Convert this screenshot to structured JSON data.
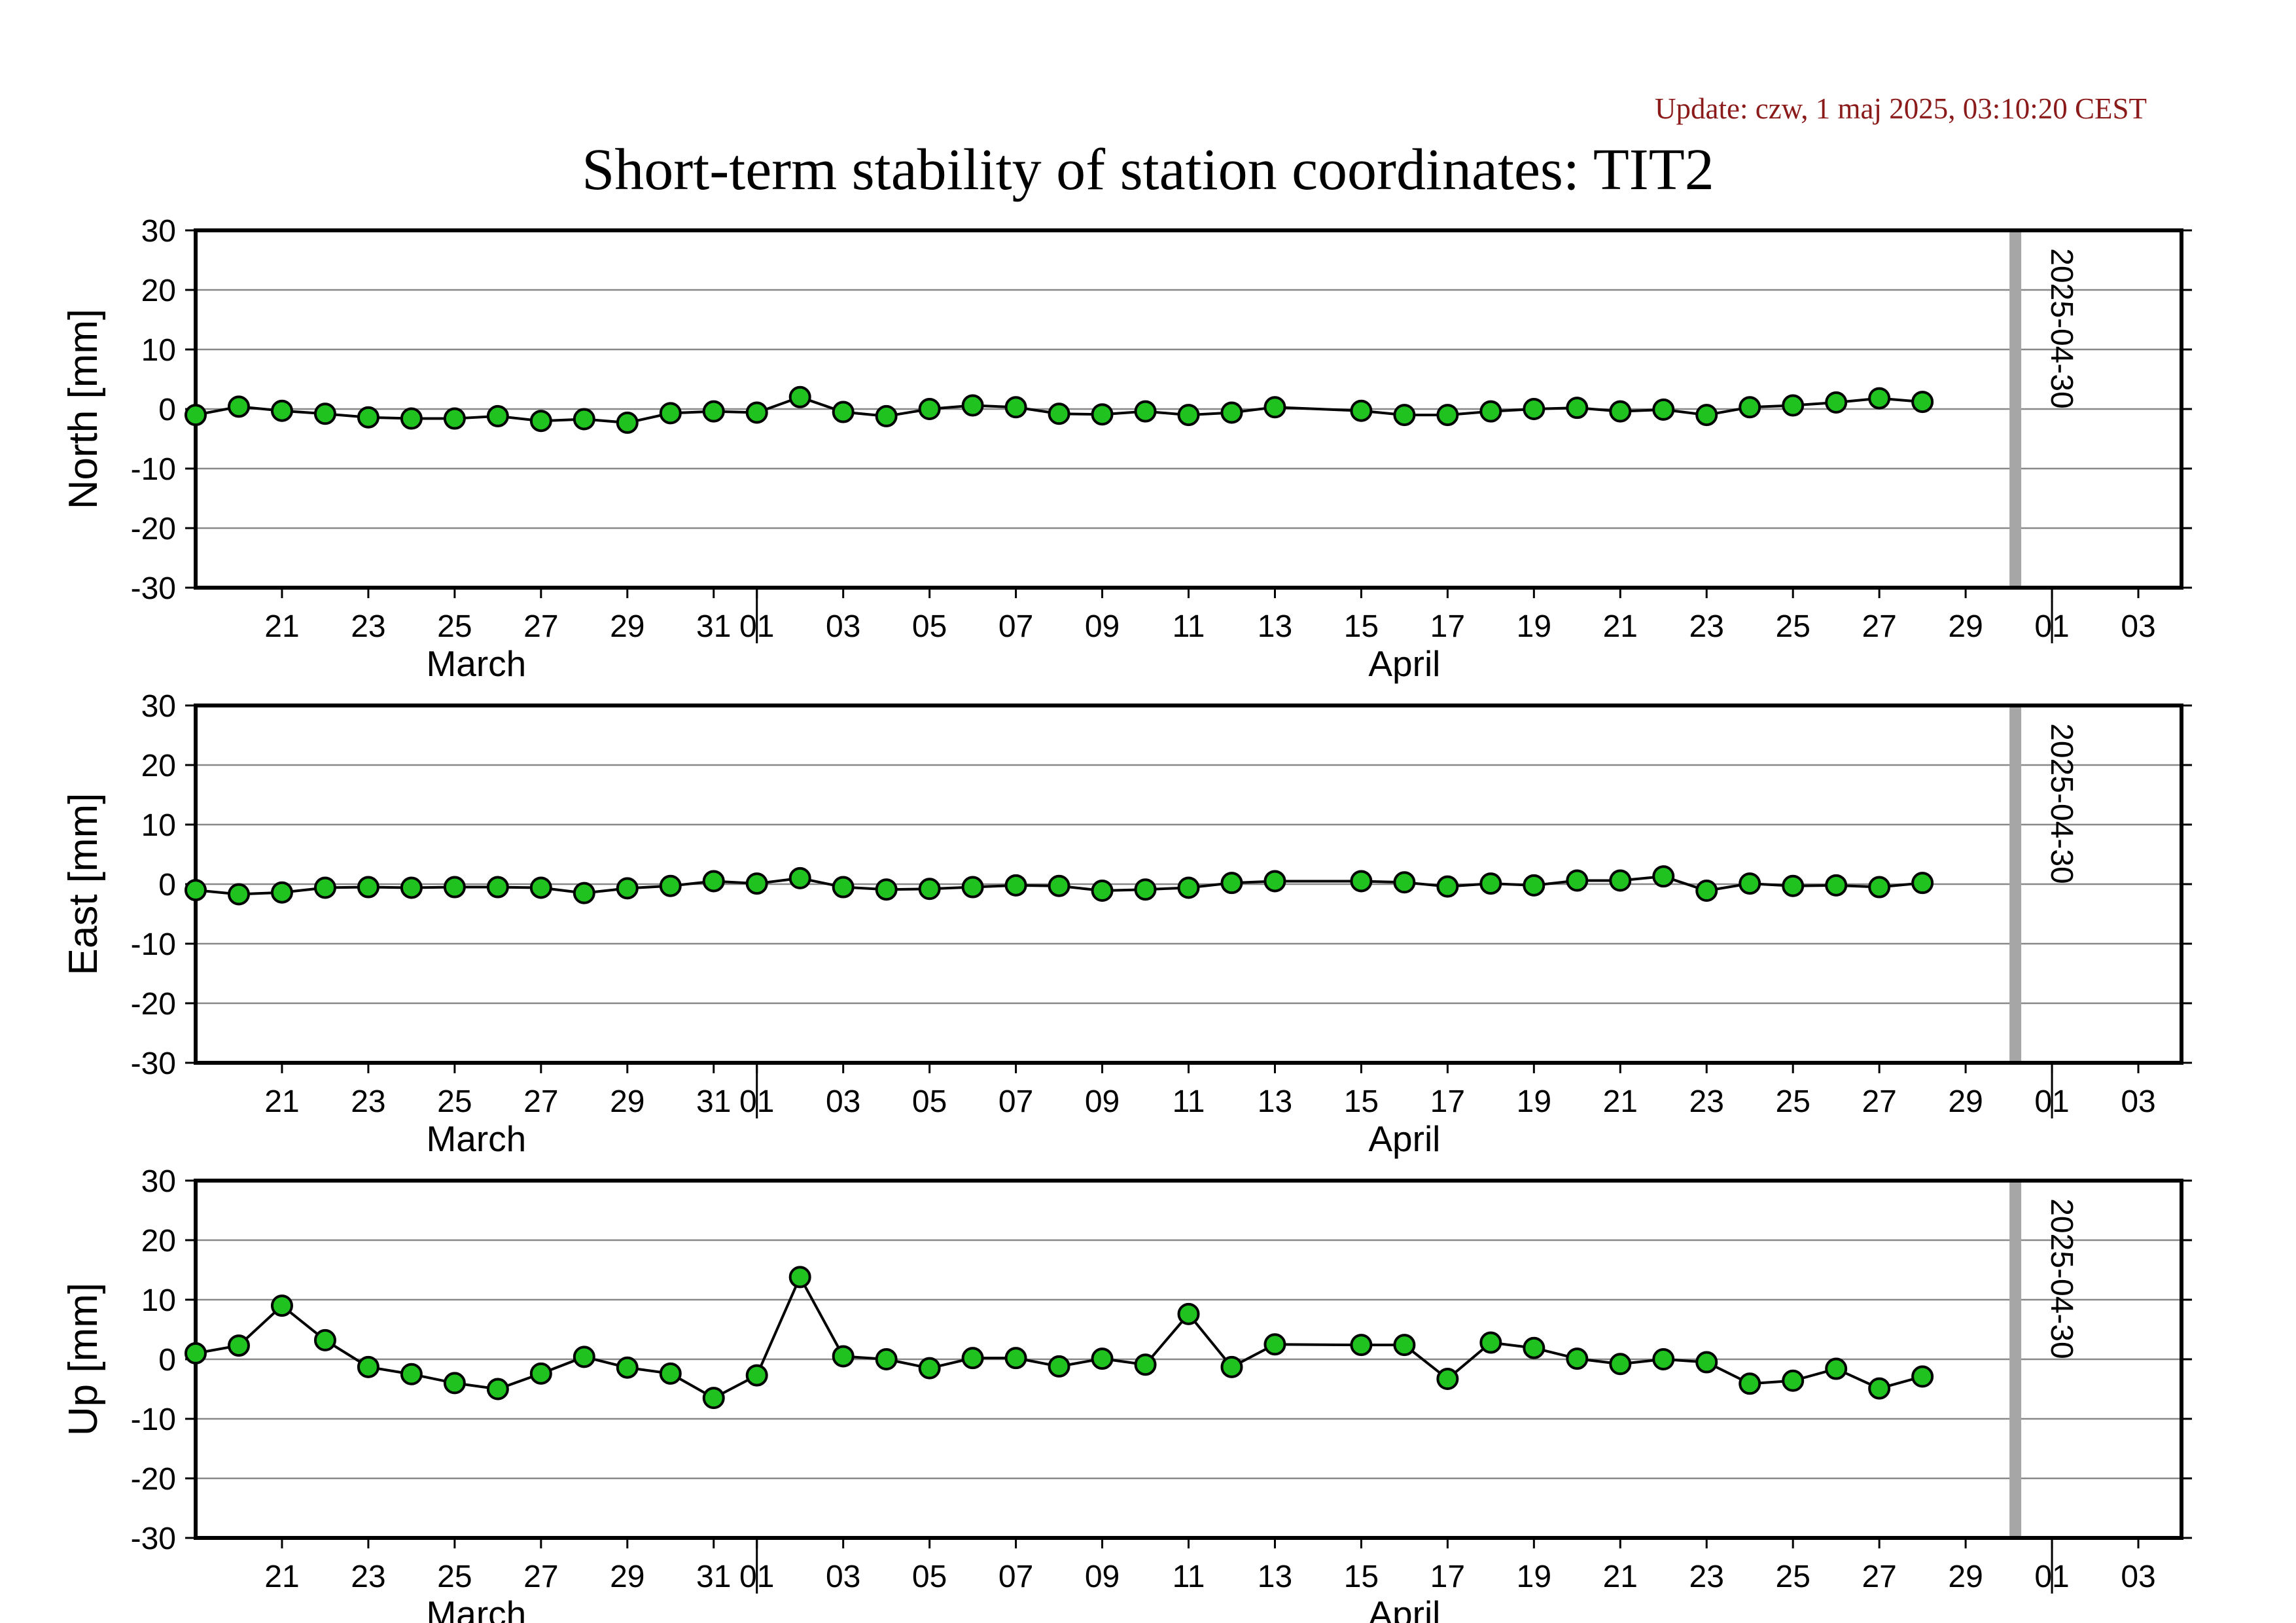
{
  "update_text": "Update: czw, 1 maj 2025, 03:10:20 CEST",
  "title": "Short-term stability of station coordinates: TIT2",
  "colors": {
    "marker_fill": "#1fc21f",
    "marker_edge": "#000000",
    "grid": "#888888",
    "marker_line": "#a6a6a6",
    "update_text": "#8b1a1a"
  },
  "chart_data": [
    {
      "type": "line",
      "ylabel": "North [mm]",
      "ylim": [
        -30,
        30
      ],
      "yticks": [
        -30,
        -20,
        -10,
        0,
        10,
        20,
        30
      ],
      "xlim": [
        "2025-03-19",
        "2025-05-04"
      ],
      "x_day_ticks": [
        "21",
        "23",
        "25",
        "27",
        "29",
        "31",
        "01",
        "03",
        "05",
        "07",
        "09",
        "11",
        "13",
        "15",
        "17",
        "19",
        "21",
        "23",
        "25",
        "27",
        "29",
        "01",
        "03"
      ],
      "x_month_labels": [
        "March",
        "April"
      ],
      "grid": "horizontal",
      "vertical_marker": {
        "date": "2025-04-30",
        "label": "2025-04-30"
      },
      "series": [
        {
          "x": [
            "2025-03-19",
            "2025-03-20",
            "2025-03-21",
            "2025-03-22",
            "2025-03-23",
            "2025-03-24",
            "2025-03-25",
            "2025-03-26",
            "2025-03-27",
            "2025-03-28",
            "2025-03-29",
            "2025-03-30",
            "2025-03-31",
            "2025-04-01",
            "2025-04-02",
            "2025-04-03",
            "2025-04-04",
            "2025-04-05",
            "2025-04-06",
            "2025-04-07",
            "2025-04-08",
            "2025-04-09",
            "2025-04-10",
            "2025-04-11",
            "2025-04-12",
            "2025-04-13",
            "2025-04-15",
            "2025-04-16",
            "2025-04-17",
            "2025-04-18",
            "2025-04-19",
            "2025-04-20",
            "2025-04-21",
            "2025-04-22",
            "2025-04-23",
            "2025-04-24",
            "2025-04-25",
            "2025-04-26",
            "2025-04-27",
            "2025-04-28"
          ],
          "y": [
            -1.0,
            0.4,
            -0.3,
            -0.8,
            -1.4,
            -1.6,
            -1.6,
            -1.2,
            -2.0,
            -1.7,
            -2.3,
            -0.7,
            -0.4,
            -0.6,
            2.0,
            -0.5,
            -1.2,
            0.0,
            0.6,
            0.3,
            -0.8,
            -0.9,
            -0.4,
            -1.0,
            -0.6,
            0.3,
            -0.3,
            -1.0,
            -1.0,
            -0.4,
            0.0,
            0.2,
            -0.4,
            -0.1,
            -1.0,
            0.3,
            0.6,
            1.1,
            1.8,
            1.2
          ]
        }
      ]
    },
    {
      "type": "line",
      "ylabel": "East [mm]",
      "ylim": [
        -30,
        30
      ],
      "yticks": [
        -30,
        -20,
        -10,
        0,
        10,
        20,
        30
      ],
      "xlim": [
        "2025-03-19",
        "2025-05-04"
      ],
      "x_day_ticks": [
        "21",
        "23",
        "25",
        "27",
        "29",
        "31",
        "01",
        "03",
        "05",
        "07",
        "09",
        "11",
        "13",
        "15",
        "17",
        "19",
        "21",
        "23",
        "25",
        "27",
        "29",
        "01",
        "03"
      ],
      "x_month_labels": [
        "March",
        "April"
      ],
      "grid": "horizontal",
      "vertical_marker": {
        "date": "2025-04-30",
        "label": "2025-04-30"
      },
      "series": [
        {
          "x": [
            "2025-03-19",
            "2025-03-20",
            "2025-03-21",
            "2025-03-22",
            "2025-03-23",
            "2025-03-24",
            "2025-03-25",
            "2025-03-26",
            "2025-03-27",
            "2025-03-28",
            "2025-03-29",
            "2025-03-30",
            "2025-03-31",
            "2025-04-01",
            "2025-04-02",
            "2025-04-03",
            "2025-04-04",
            "2025-04-05",
            "2025-04-06",
            "2025-04-07",
            "2025-04-08",
            "2025-04-09",
            "2025-04-10",
            "2025-04-11",
            "2025-04-12",
            "2025-04-13",
            "2025-04-15",
            "2025-04-16",
            "2025-04-17",
            "2025-04-18",
            "2025-04-19",
            "2025-04-20",
            "2025-04-21",
            "2025-04-22",
            "2025-04-23",
            "2025-04-24",
            "2025-04-25",
            "2025-04-26",
            "2025-04-27",
            "2025-04-28"
          ],
          "y": [
            -1.0,
            -1.7,
            -1.4,
            -0.6,
            -0.5,
            -0.6,
            -0.5,
            -0.5,
            -0.6,
            -1.5,
            -0.7,
            -0.3,
            0.5,
            0.1,
            1.0,
            -0.5,
            -0.9,
            -0.8,
            -0.5,
            -0.2,
            -0.3,
            -1.1,
            -0.9,
            -0.6,
            0.2,
            0.5,
            0.5,
            0.3,
            -0.4,
            0.1,
            -0.2,
            0.6,
            0.6,
            1.3,
            -1.1,
            0.1,
            -0.3,
            -0.2,
            -0.5,
            0.2
          ]
        }
      ]
    },
    {
      "type": "line",
      "ylabel": "Up [mm]",
      "ylim": [
        -30,
        30
      ],
      "yticks": [
        -30,
        -20,
        -10,
        0,
        10,
        20,
        30
      ],
      "xlim": [
        "2025-03-19",
        "2025-05-04"
      ],
      "x_day_ticks": [
        "21",
        "23",
        "25",
        "27",
        "29",
        "31",
        "01",
        "03",
        "05",
        "07",
        "09",
        "11",
        "13",
        "15",
        "17",
        "19",
        "21",
        "23",
        "25",
        "27",
        "29",
        "01",
        "03"
      ],
      "x_month_labels": [
        "March",
        "April"
      ],
      "grid": "horizontal",
      "vertical_marker": {
        "date": "2025-04-30",
        "label": "2025-04-30"
      },
      "series": [
        {
          "x": [
            "2025-03-19",
            "2025-03-20",
            "2025-03-21",
            "2025-03-22",
            "2025-03-23",
            "2025-03-24",
            "2025-03-25",
            "2025-03-26",
            "2025-03-27",
            "2025-03-28",
            "2025-03-29",
            "2025-03-30",
            "2025-03-31",
            "2025-04-01",
            "2025-04-02",
            "2025-04-03",
            "2025-04-04",
            "2025-04-05",
            "2025-04-06",
            "2025-04-07",
            "2025-04-08",
            "2025-04-09",
            "2025-04-10",
            "2025-04-11",
            "2025-04-12",
            "2025-04-13",
            "2025-04-15",
            "2025-04-16",
            "2025-04-17",
            "2025-04-18",
            "2025-04-19",
            "2025-04-20",
            "2025-04-21",
            "2025-04-22",
            "2025-04-23",
            "2025-04-24",
            "2025-04-25",
            "2025-04-26",
            "2025-04-27",
            "2025-04-28"
          ],
          "y": [
            1.0,
            2.3,
            9.0,
            3.2,
            -1.3,
            -2.5,
            -4.0,
            -5.0,
            -2.4,
            0.4,
            -1.4,
            -2.4,
            -6.5,
            -2.7,
            13.8,
            0.5,
            0.0,
            -1.5,
            0.2,
            0.2,
            -1.2,
            0.1,
            -0.9,
            7.6,
            -1.3,
            2.5,
            2.4,
            2.4,
            -3.3,
            2.8,
            1.9,
            0.1,
            -0.8,
            0.0,
            -0.5,
            -4.1,
            -3.6,
            -1.6,
            -4.9,
            -2.9
          ]
        }
      ]
    }
  ]
}
